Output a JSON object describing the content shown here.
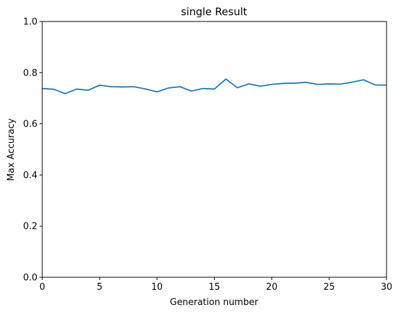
{
  "chart_data": {
    "type": "line",
    "title": "single Result",
    "xlabel": "Generation number",
    "ylabel": "Max Accuracy",
    "xlim": [
      0,
      30
    ],
    "ylim": [
      0.0,
      1.0
    ],
    "xticks": [
      0,
      5,
      10,
      15,
      20,
      25,
      30
    ],
    "xtick_labels": [
      "0",
      "5",
      "10",
      "15",
      "20",
      "25",
      "30"
    ],
    "yticks": [
      0.0,
      0.2,
      0.4,
      0.6,
      0.8,
      1.0
    ],
    "ytick_labels": [
      "0.0",
      "0.2",
      "0.4",
      "0.6",
      "0.8",
      "1.0"
    ],
    "grid": false,
    "series": [
      {
        "color": "#1f77b4",
        "x": [
          0,
          1,
          2,
          3,
          4,
          5,
          6,
          7,
          8,
          9,
          10,
          11,
          12,
          13,
          14,
          15,
          16,
          17,
          18,
          19,
          20,
          21,
          22,
          23,
          24,
          25,
          26,
          27,
          28,
          29,
          30
        ],
        "y": [
          0.738,
          0.735,
          0.718,
          0.736,
          0.731,
          0.751,
          0.745,
          0.744,
          0.745,
          0.736,
          0.725,
          0.74,
          0.745,
          0.728,
          0.738,
          0.736,
          0.775,
          0.741,
          0.756,
          0.747,
          0.754,
          0.758,
          0.759,
          0.762,
          0.754,
          0.756,
          0.755,
          0.763,
          0.772,
          0.752,
          0.751
        ]
      }
    ]
  }
}
